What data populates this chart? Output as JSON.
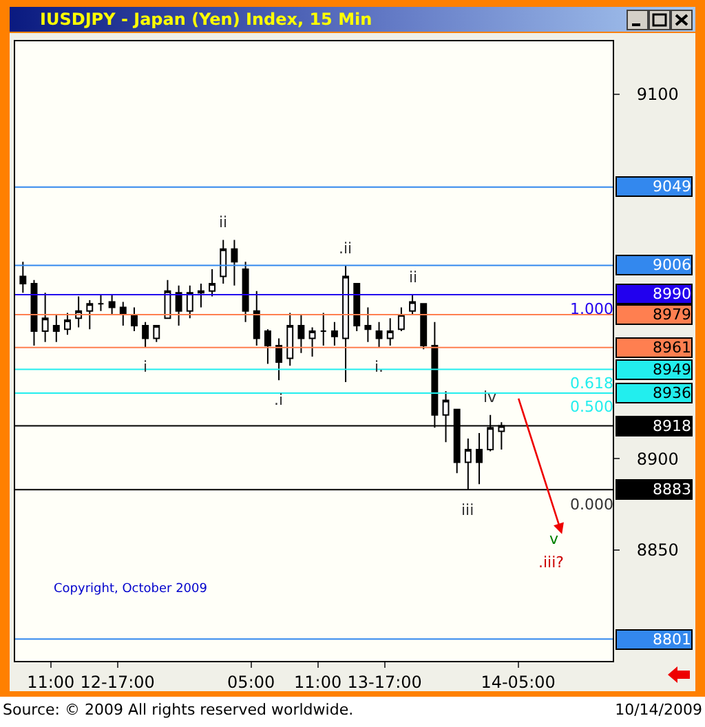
{
  "chart_data": {
    "type": "candlestick",
    "title": "IUSDJPY - Japan (Yen) Index, 15 Min",
    "x": [
      "2009-10-12T08:30",
      "2009-10-12T09:30",
      "2009-10-12T10:30",
      "2009-10-12T11:30",
      "2009-10-12T12:30",
      "2009-10-12T13:30",
      "2009-10-12T14:30",
      "2009-10-12T15:30",
      "2009-10-12T16:30",
      "2009-10-12T17:30",
      "2009-10-12T18:30",
      "2009-10-12T19:30",
      "2009-10-12T20:30",
      "2009-10-12T21:30",
      "2009-10-12T22:30",
      "2009-10-12T23:30",
      "2009-10-13T00:30",
      "2009-10-13T01:30",
      "2009-10-13T02:30",
      "2009-10-13T03:30",
      "2009-10-13T04:30",
      "2009-10-13T05:30",
      "2009-10-13T06:30",
      "2009-10-13T07:30",
      "2009-10-13T08:30",
      "2009-10-13T09:30",
      "2009-10-13T10:30",
      "2009-10-13T11:30",
      "2009-10-13T12:30",
      "2009-10-13T13:30",
      "2009-10-13T14:30",
      "2009-10-13T15:30",
      "2009-10-13T16:30",
      "2009-10-13T17:30",
      "2009-10-13T18:30",
      "2009-10-13T19:30",
      "2009-10-13T20:30",
      "2009-10-13T21:30",
      "2009-10-13T22:30",
      "2009-10-13T23:30",
      "2009-10-14T00:30",
      "2009-10-14T01:30",
      "2009-10-14T02:30",
      "2009-10-14T03:30"
    ],
    "ohlc": [
      [
        9000,
        9008,
        8991,
        8996
      ],
      [
        8996,
        8998,
        8962,
        8970
      ],
      [
        8970,
        8991,
        8964,
        8977
      ],
      [
        8973,
        8979,
        8964,
        8970
      ],
      [
        8971,
        8980,
        8968,
        8976
      ],
      [
        8977,
        8989,
        8972,
        8981
      ],
      [
        8981,
        8987,
        8971,
        8985
      ],
      [
        8985,
        8990,
        8981,
        8985
      ],
      [
        8986,
        8990,
        8979,
        8983
      ],
      [
        8983,
        8986,
        8973,
        8979
      ],
      [
        8979,
        8983,
        8970,
        8973
      ],
      [
        8973,
        8975,
        8961,
        8966
      ],
      [
        8966,
        8973,
        8964,
        8973
      ],
      [
        8977,
        8998,
        8977,
        8992
      ],
      [
        8991,
        8995,
        8973,
        8981
      ],
      [
        8981,
        8995,
        8977,
        8991
      ],
      [
        8991,
        8996,
        8983,
        8992
      ],
      [
        8992,
        9004,
        8989,
        8996
      ],
      [
        9000,
        9020,
        8996,
        9015
      ],
      [
        9015,
        9020,
        8995,
        9008
      ],
      [
        9004,
        9008,
        8975,
        8981
      ],
      [
        8981,
        8992,
        8962,
        8966
      ],
      [
        8970,
        8971,
        8952,
        8962
      ],
      [
        8962,
        8966,
        8943,
        8953
      ],
      [
        8955,
        8980,
        8951,
        8973
      ],
      [
        8973,
        8979,
        8958,
        8966
      ],
      [
        8966,
        8972,
        8956,
        8970
      ],
      [
        8970,
        8980,
        8962,
        8970
      ],
      [
        8970,
        8975,
        8962,
        8967
      ],
      [
        8966,
        9006,
        8942,
        9000
      ],
      [
        8996,
        8996,
        8970,
        8973
      ],
      [
        8973,
        8983,
        8964,
        8971
      ],
      [
        8970,
        8975,
        8961,
        8966
      ],
      [
        8966,
        8977,
        8962,
        8970
      ],
      [
        8971,
        8983,
        8970,
        8979
      ],
      [
        8981,
        8990,
        8979,
        8986
      ],
      [
        8985,
        8985,
        8960,
        8962
      ],
      [
        8962,
        8975,
        8917,
        8924
      ],
      [
        8924,
        8937,
        8909,
        8932
      ],
      [
        8927,
        8927,
        8892,
        8898
      ],
      [
        8898,
        8911,
        8883,
        8905
      ],
      [
        8905,
        8914,
        8886,
        8898
      ],
      [
        8905,
        8924,
        8904,
        8917
      ],
      [
        8915,
        8920,
        8905,
        8918
      ]
    ],
    "xlim": [
      "2009-10-12T07:48",
      "2009-10-14T13:30"
    ],
    "xticks": [
      {
        "value": "2009-10-12T11:00",
        "label": "11:00"
      },
      {
        "value": "2009-10-12T17:00",
        "label": "12-17:00"
      },
      {
        "value": "2009-10-13T05:00",
        "label": "05:00"
      },
      {
        "value": "2009-10-13T11:00",
        "label": "11:00"
      },
      {
        "value": "2009-10-13T17:00",
        "label": "13-17:00"
      },
      {
        "value": "2009-10-14T05:00",
        "label": "14-05:00"
      }
    ],
    "ylim": [
      8789,
      9129
    ],
    "yticks": [
      8850,
      8900,
      9100
    ],
    "ref_lines": [
      {
        "axis": "y",
        "value": 9049,
        "label": "9049",
        "color": "#3388ee"
      },
      {
        "axis": "y",
        "value": 9006,
        "label": "9006",
        "color": "#3388ee"
      },
      {
        "axis": "y",
        "value": 8990,
        "label": "8990",
        "color": "#2200ee"
      },
      {
        "axis": "y",
        "value": 8979,
        "label": "8979",
        "color": "#ff7f50"
      },
      {
        "axis": "y",
        "value": 8961,
        "label": "8961",
        "color": "#ff7f50"
      },
      {
        "axis": "y",
        "value": 8949,
        "label": "8949",
        "color": "#22eeee"
      },
      {
        "axis": "y",
        "value": 8936,
        "label": "8936",
        "color": "#22eeee"
      },
      {
        "axis": "y",
        "value": 8918,
        "label": "8918",
        "color": "#000000"
      },
      {
        "axis": "y",
        "value": 8883,
        "label": "8883",
        "color": "#000000"
      },
      {
        "axis": "y",
        "value": 8801,
        "label": "8801",
        "color": "#3388ee"
      }
    ],
    "annotations": [
      "Copyright, October 2009",
      "Source: © 2009 All rights reserved worldwide.",
      "10/14/2009",
      "v",
      ".iii?",
      {
        "text": "ii",
        "x": "2009-10-13T02:30",
        "y": 9020
      },
      {
        "text": "i",
        "x": "2009-10-12T19:30",
        "y": 8961
      },
      {
        "text": ".i",
        "x": "2009-10-13T07:30",
        "y": 8943
      },
      {
        "text": ".ii",
        "x": "2009-10-13T13:30",
        "y": 9006
      },
      {
        "text": "ii",
        "x": "2009-10-13T19:30",
        "y": 8990
      },
      {
        "text": "i.",
        "x": "2009-10-13T16:30",
        "y": 8961
      },
      {
        "text": "iii",
        "x": "2009-10-14T00:30",
        "y": 8883
      },
      {
        "text": "iv",
        "x": "2009-10-14T02:30",
        "y": 8924
      },
      {
        "text": "1.000",
        "x": "2009-10-14T11:36",
        "y": 8990
      },
      {
        "text": "0.618",
        "x": "2009-10-14T11:36",
        "y": 8949
      },
      {
        "text": "0.500",
        "x": "2009-10-14T11:36",
        "y": 8936
      },
      {
        "text": "0.000",
        "x": "2009-10-14T11:36",
        "y": 8883
      }
    ]
  }
}
